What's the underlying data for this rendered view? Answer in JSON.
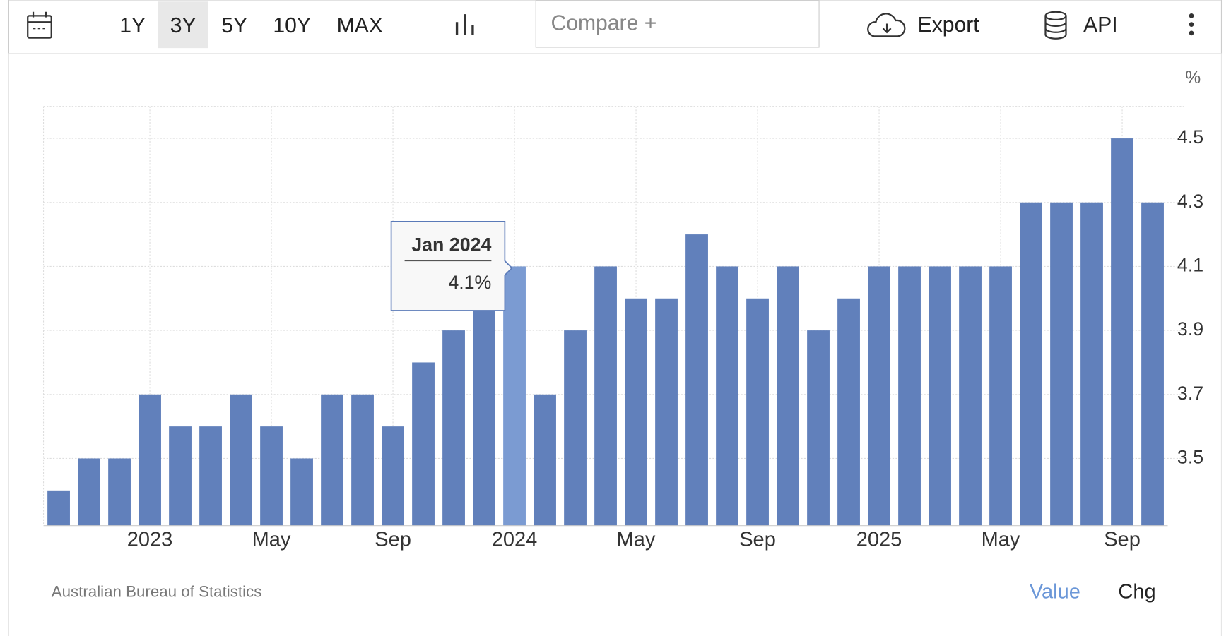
{
  "toolbar": {
    "ranges": [
      "1Y",
      "3Y",
      "5Y",
      "10Y",
      "MAX"
    ],
    "active_range": "3Y",
    "compare": "Compare +",
    "export": "Export",
    "api": "API"
  },
  "chart_data": {
    "type": "bar",
    "unit": "%",
    "categories": [
      null,
      null,
      null,
      "2023",
      null,
      null,
      null,
      "May",
      null,
      null,
      null,
      "Sep",
      null,
      null,
      null,
      "2024",
      null,
      null,
      null,
      "May",
      null,
      null,
      null,
      "Sep",
      null,
      null,
      null,
      "2025",
      null,
      null,
      null,
      "May",
      null,
      null,
      null,
      "Sep",
      null
    ],
    "values": [
      3.4,
      3.5,
      3.5,
      3.7,
      3.6,
      3.6,
      3.7,
      3.6,
      3.5,
      3.7,
      3.7,
      3.6,
      3.8,
      3.9,
      4.0,
      4.1,
      3.7,
      3.9,
      4.1,
      4.0,
      4.0,
      4.2,
      4.1,
      4.0,
      4.1,
      3.9,
      4.0,
      4.1,
      4.1,
      4.1,
      4.1,
      4.1,
      4.3,
      4.3,
      4.3,
      4.5,
      4.3
    ],
    "color": "#6180bb",
    "highlight_color": "#7b9bd2",
    "highlight": 15,
    "tooltip": {
      "title": "Jan 2024",
      "value": 4.1,
      "value_label": "4.1%"
    },
    "ylim": [
      3.29,
      4.6
    ],
    "yticks": [
      3.5,
      3.7,
      3.9,
      4.1,
      4.3,
      4.5
    ],
    "grid": true,
    "source": "Australian Bureau of Statistics",
    "footer_tabs": [
      "Value",
      "Chg"
    ]
  }
}
